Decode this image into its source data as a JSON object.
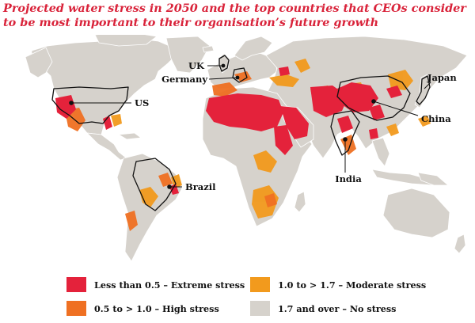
{
  "title": "Projected water stress in 2050 and the top countries that CEOs consider to be most important to their organisation’s future growth",
  "countries": [
    {
      "id": "uk",
      "label": "UK"
    },
    {
      "id": "germany",
      "label": "Germany"
    },
    {
      "id": "japan",
      "label": "Japan"
    },
    {
      "id": "us",
      "label": "US"
    },
    {
      "id": "china",
      "label": "China"
    },
    {
      "id": "brazil",
      "label": "Brazil"
    },
    {
      "id": "india",
      "label": "India"
    }
  ],
  "legend": [
    {
      "label": "Less than 0.5 – Extreme stress",
      "color": "#e4223b"
    },
    {
      "label": "1.0 to > 1.7 – Moderate stress",
      "color": "#f29a1d"
    },
    {
      "label": "0.5 to > 1.0 – High stress",
      "color": "#ef7022"
    },
    {
      "label": "1.7 and over – No stress",
      "color": "#d6d2cc"
    }
  ],
  "colors": {
    "land": "#d6d2cc",
    "extreme": "#e4223b",
    "high": "#ef7022",
    "moderate": "#f29a1d",
    "title": "#d9233a"
  }
}
